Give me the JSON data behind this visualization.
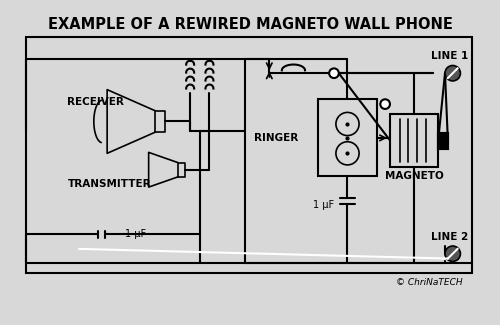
{
  "title": "EXAMPLE OF A REWIRED MAGNETO WALL PHONE",
  "bg_color": "#d8d8d8",
  "border_color": "#000000",
  "line_color": "#000000",
  "text_color": "#000000",
  "copyright": "© ChriNaTECH",
  "line1_label": "LINE 1",
  "line2_label": "LINE 2",
  "receiver_label": "RECEIVER",
  "transmitter_label": "TRANSMITTER",
  "ringer_label": "RINGER",
  "magneto_label": "MAGNETO",
  "cap1_label": "1 μF",
  "cap2_label": "1 μF"
}
